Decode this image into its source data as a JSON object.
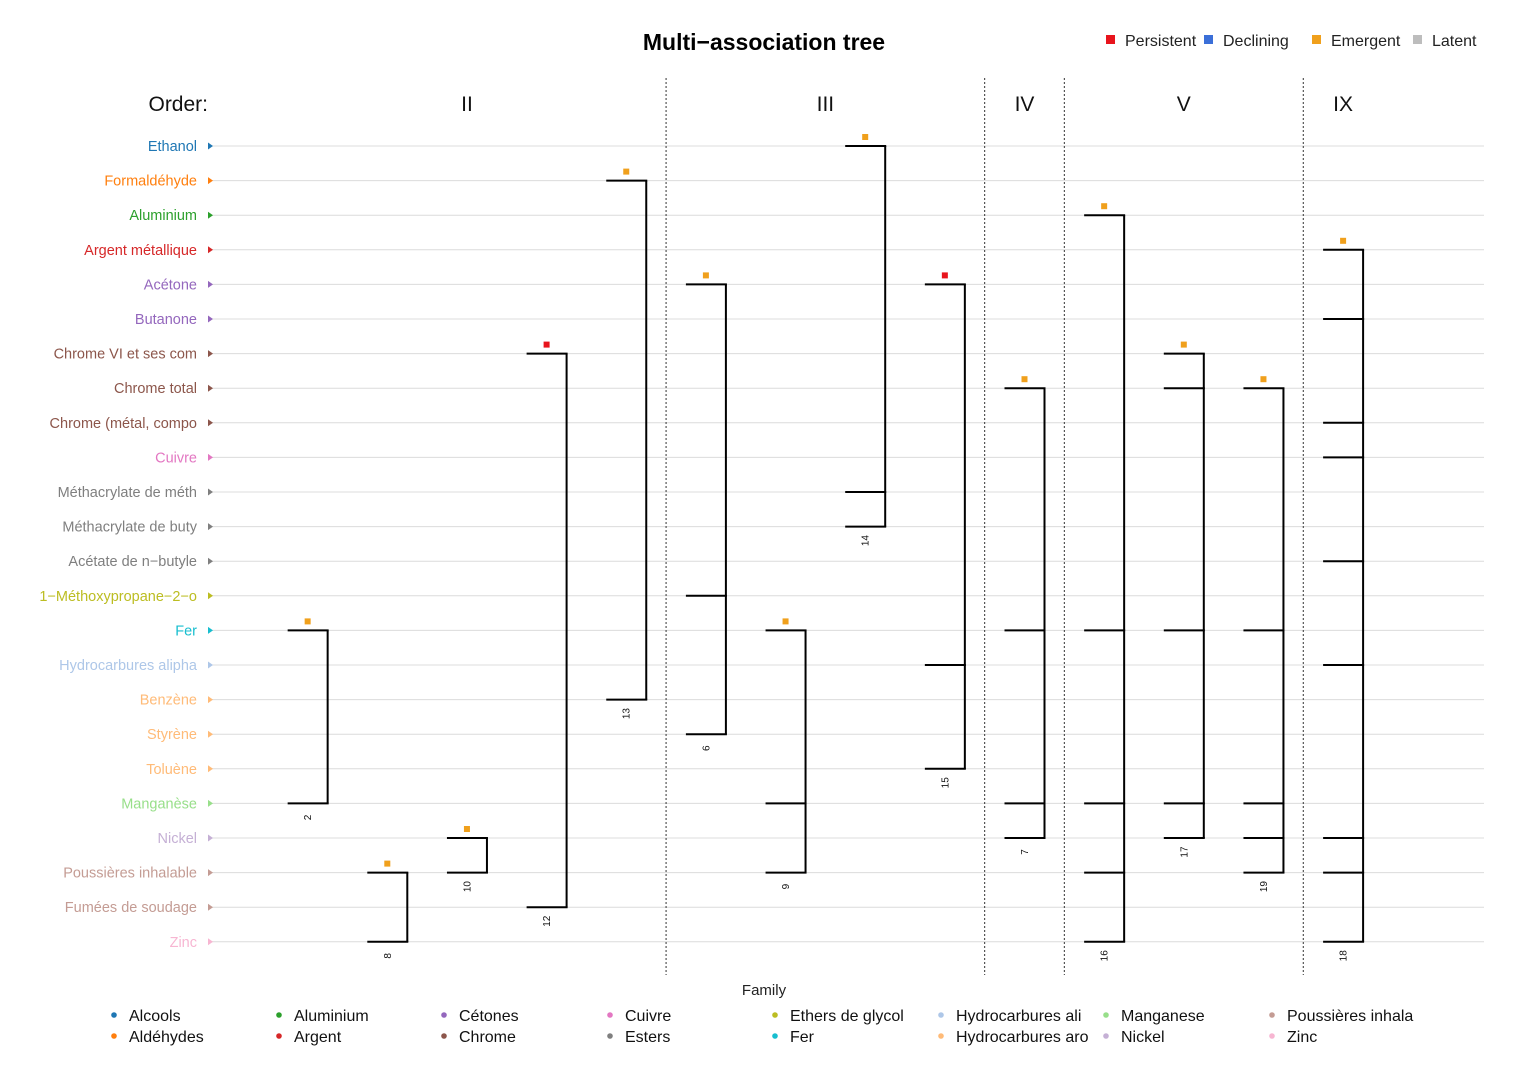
{
  "chart_data": {
    "type": "tree",
    "title": "Multi−association tree",
    "status_legend": [
      {
        "name": "Persistent",
        "color": "#e8141c"
      },
      {
        "name": "Declining",
        "color": "#3b6fd8"
      },
      {
        "name": "Emergent",
        "color": "#f0a01c"
      },
      {
        "name": "Latent",
        "color": "#bdbdbd"
      }
    ],
    "order_label": "Order:",
    "orders": [
      {
        "label": "II",
        "from": 1,
        "to": 5
      },
      {
        "label": "III",
        "from": 6,
        "to": 9
      },
      {
        "label": "IV",
        "from": 10,
        "to": 10
      },
      {
        "label": "V",
        "from": 11,
        "to": 13
      },
      {
        "label": "IX",
        "from": 14,
        "to": 14
      }
    ],
    "rows": [
      {
        "label": "Ethanol",
        "family": "Alcools"
      },
      {
        "label": "Formaldéhyde",
        "family": "Aldéhydes"
      },
      {
        "label": "Aluminium",
        "family": "Aluminium"
      },
      {
        "label": "Argent métallique",
        "family": "Argent"
      },
      {
        "label": "Acétone",
        "family": "Cétones"
      },
      {
        "label": "Butanone",
        "family": "Cétones"
      },
      {
        "label": "Chrome VI et ses com",
        "family": "Chrome"
      },
      {
        "label": "Chrome total",
        "family": "Chrome"
      },
      {
        "label": "Chrome (métal, compo",
        "family": "Chrome"
      },
      {
        "label": "Cuivre",
        "family": "Cuivre"
      },
      {
        "label": "Méthacrylate de méth",
        "family": "Esters"
      },
      {
        "label": "Méthacrylate de buty",
        "family": "Esters"
      },
      {
        "label": "Acétate de n−butyle",
        "family": "Esters"
      },
      {
        "label": "1−Méthoxypropane−2−o",
        "family": "Ethers de glycol"
      },
      {
        "label": "Fer",
        "family": "Fer"
      },
      {
        "label": "Hydrocarbures alipha",
        "family": "Hydrocarbures ali"
      },
      {
        "label": "Benzène",
        "family": "Hydrocarbures aro"
      },
      {
        "label": "Styrène",
        "family": "Hydrocarbures aro"
      },
      {
        "label": "Toluène",
        "family": "Hydrocarbures aro"
      },
      {
        "label": "Manganèse",
        "family": "Manganese"
      },
      {
        "label": "Nickel",
        "family": "Nickel"
      },
      {
        "label": "Poussières inhalable",
        "family": "Poussières inhala"
      },
      {
        "label": "Fumées de soudage",
        "family": "Poussières inhala"
      },
      {
        "label": "Zinc",
        "family": "Zinc"
      }
    ],
    "associations": [
      {
        "id": "2",
        "status": "Emergent",
        "rows": [
          14,
          19
        ]
      },
      {
        "id": "8",
        "status": "Emergent",
        "rows": [
          21,
          23
        ]
      },
      {
        "id": "10",
        "status": "Emergent",
        "rows": [
          20,
          21
        ]
      },
      {
        "id": "12",
        "status": "Persistent",
        "rows": [
          6,
          22
        ]
      },
      {
        "id": "13",
        "status": "Emergent",
        "rows": [
          1,
          16
        ]
      },
      {
        "id": "6",
        "status": "Emergent",
        "rows": [
          4,
          13,
          17
        ]
      },
      {
        "id": "9",
        "status": "Emergent",
        "rows": [
          14,
          19,
          21
        ]
      },
      {
        "id": "14",
        "status": "Emergent",
        "rows": [
          0,
          10,
          11
        ]
      },
      {
        "id": "15",
        "status": "Persistent",
        "rows": [
          4,
          15,
          18
        ]
      },
      {
        "id": "7",
        "status": "Emergent",
        "rows": [
          7,
          14,
          19,
          20
        ]
      },
      {
        "id": "16",
        "status": "Emergent",
        "rows": [
          2,
          14,
          19,
          21,
          23
        ]
      },
      {
        "id": "17",
        "status": "Emergent",
        "rows": [
          6,
          7,
          14,
          19,
          20
        ]
      },
      {
        "id": "19",
        "status": "Emergent",
        "rows": [
          7,
          14,
          19,
          20,
          21
        ]
      },
      {
        "id": "18",
        "status": "Emergent",
        "rows": [
          3,
          5,
          8,
          9,
          12,
          15,
          20,
          21,
          23
        ]
      }
    ],
    "family_legend_title": "Family",
    "families": [
      {
        "name": "Alcools",
        "color": "#1f77b4"
      },
      {
        "name": "Aldéhydes",
        "color": "#ff7f0e"
      },
      {
        "name": "Aluminium",
        "color": "#2ca02c"
      },
      {
        "name": "Argent",
        "color": "#d62728"
      },
      {
        "name": "Cétones",
        "color": "#9467bd"
      },
      {
        "name": "Chrome",
        "color": "#8c564b"
      },
      {
        "name": "Cuivre",
        "color": "#e377c2"
      },
      {
        "name": "Esters",
        "color": "#7f7f7f"
      },
      {
        "name": "Ethers de glycol",
        "color": "#bcbd22"
      },
      {
        "name": "Fer",
        "color": "#17becf"
      },
      {
        "name": "Hydrocarbures ali",
        "color": "#aec7e8"
      },
      {
        "name": "Hydrocarbures aro",
        "color": "#ffbb78"
      },
      {
        "name": "Manganese",
        "color": "#98df8a"
      },
      {
        "name": "Nickel",
        "color": "#c5b0d5"
      },
      {
        "name": "Poussières inhala",
        "color": "#c49c94"
      },
      {
        "name": "Zinc",
        "color": "#f7b6d2"
      }
    ]
  }
}
